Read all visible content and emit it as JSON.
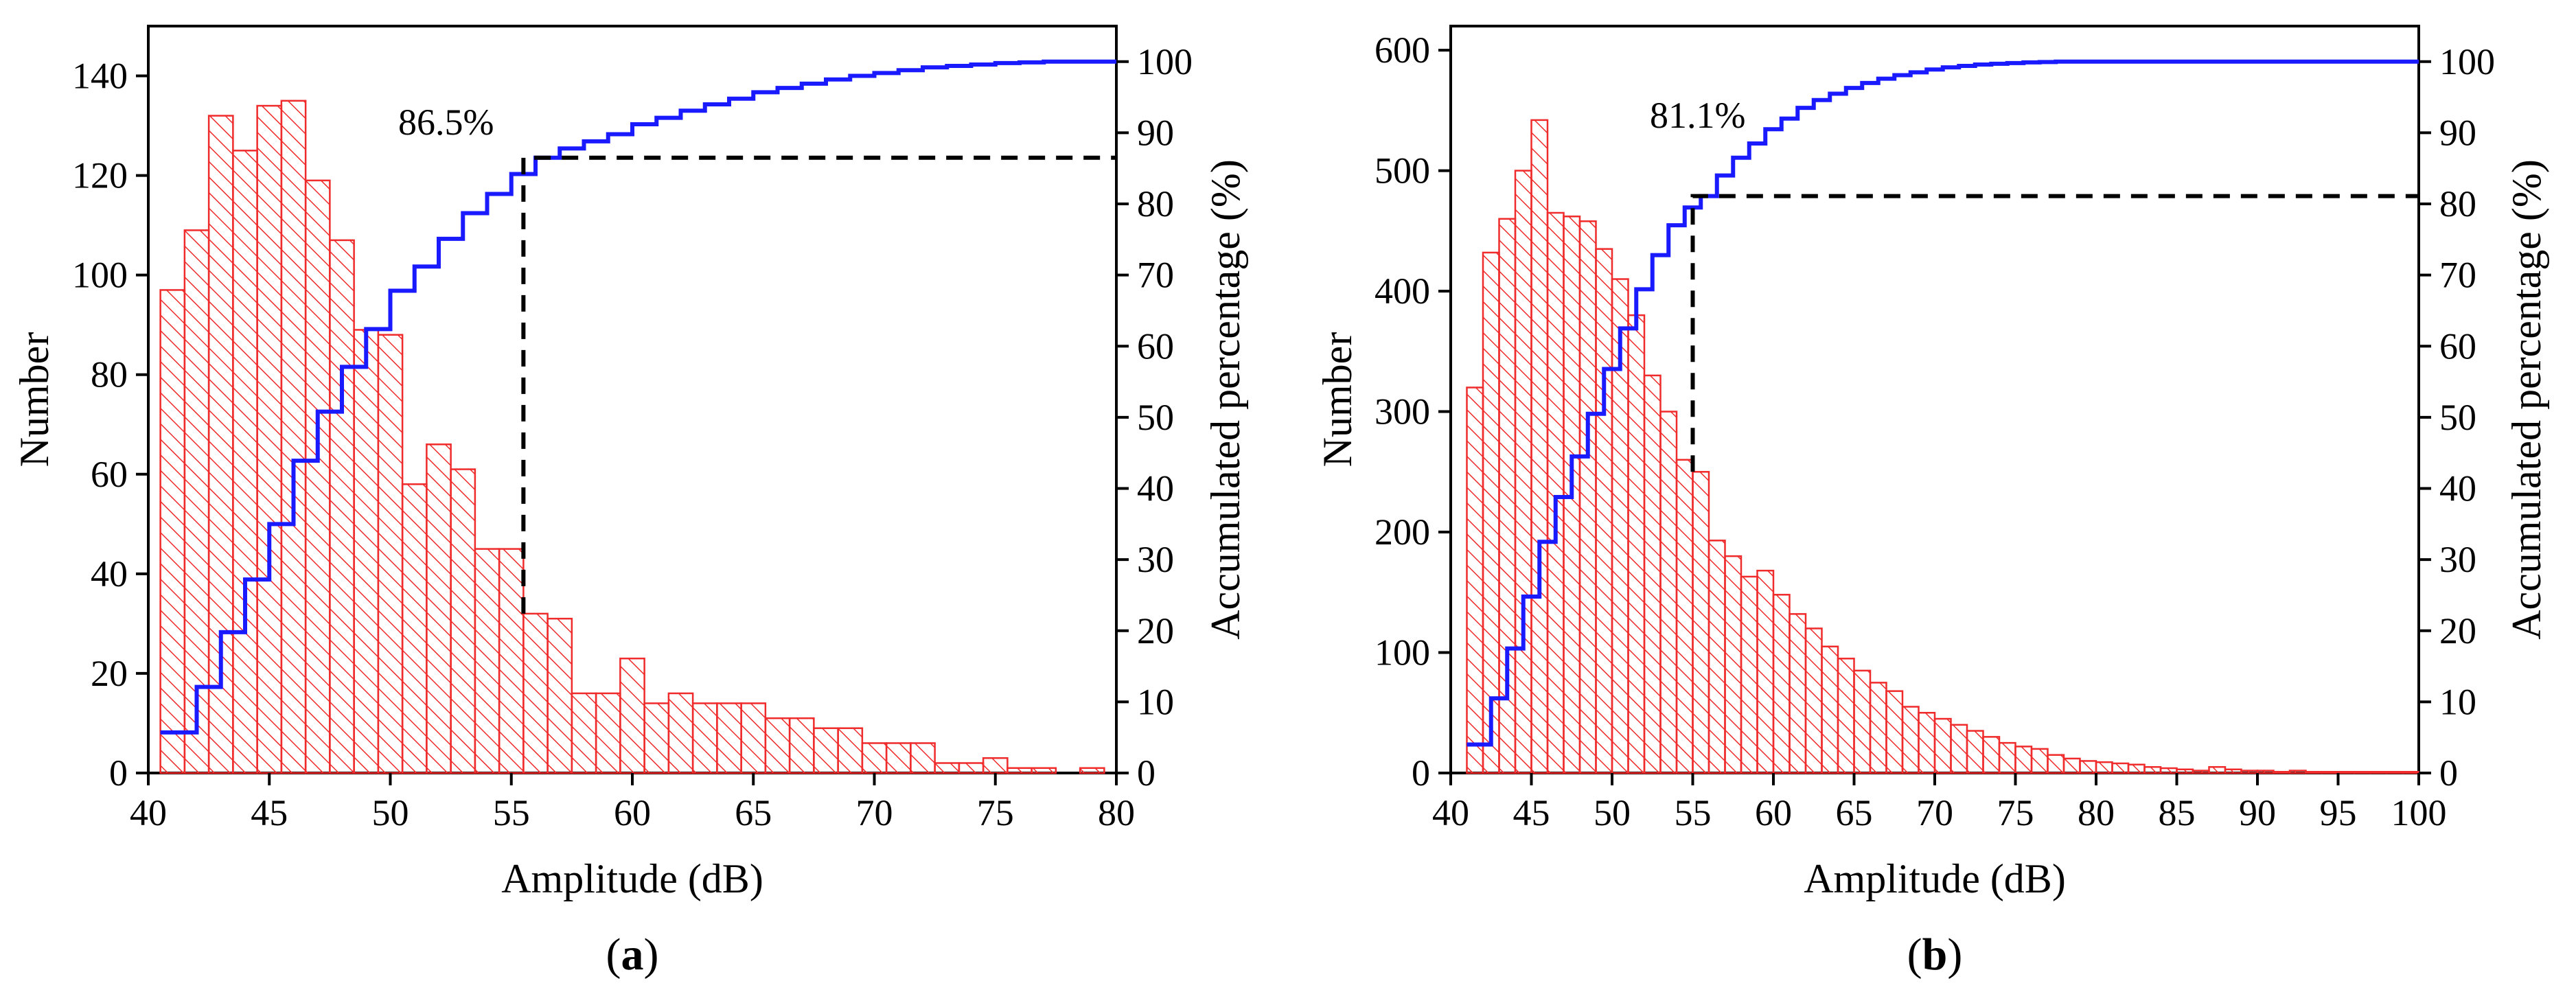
{
  "colors": {
    "bar_stroke": "#ef2b2b",
    "bar_hatch": "#ef2b2b",
    "cumulative_line": "#1a1aff",
    "threshold_line": "#000000",
    "axis": "#000000"
  },
  "chart_data": [
    {
      "type": "bar",
      "panel_label": "a",
      "title": "",
      "xlabel": "Amplitude (dB)",
      "ylabel": "Number",
      "y2label": "Accumulated percentage (%)",
      "xlim": [
        40,
        80
      ],
      "ylim": [
        0,
        150
      ],
      "y2lim": [
        0,
        105
      ],
      "xticks": [
        "40",
        "45",
        "50",
        "55",
        "60",
        "65",
        "70",
        "75",
        "80"
      ],
      "xtick_values": [
        40,
        45,
        50,
        55,
        60,
        65,
        70,
        75,
        80
      ],
      "yticks": [
        "0",
        "20",
        "40",
        "60",
        "80",
        "100",
        "120",
        "140"
      ],
      "ytick_values": [
        0,
        20,
        40,
        60,
        80,
        100,
        120,
        140
      ],
      "y2ticks": [
        "0",
        "10",
        "20",
        "30",
        "40",
        "50",
        "60",
        "70",
        "80",
        "90",
        "100"
      ],
      "y2tick_values": [
        0,
        10,
        20,
        30,
        40,
        50,
        60,
        70,
        80,
        90,
        100
      ],
      "bin_start": 40.5,
      "bin_width": 1,
      "values": [
        97,
        109,
        132,
        125,
        134,
        135,
        119,
        107,
        89,
        88,
        58,
        66,
        61,
        45,
        45,
        32,
        31,
        16,
        16,
        23,
        14,
        16,
        14,
        14,
        14,
        11,
        11,
        9,
        9,
        6,
        6,
        6,
        2,
        2,
        3,
        1,
        1,
        0,
        1
      ],
      "cumulative_percent": [
        5.7,
        12.1,
        19.8,
        27.2,
        35.0,
        43.9,
        50.8,
        57.1,
        62.4,
        67.8,
        71.2,
        75.1,
        78.7,
        81.4,
        84.2,
        86.5,
        87.8,
        88.8,
        89.8,
        91.2,
        92.1,
        93.1,
        94.0,
        94.8,
        95.7,
        96.3,
        96.9,
        97.5,
        98.0,
        98.4,
        98.8,
        99.2,
        99.4,
        99.6,
        99.8,
        99.9,
        100,
        100,
        100
      ],
      "threshold": {
        "x": 55.5,
        "percent": 86.5,
        "label": "86.5%"
      }
    },
    {
      "type": "bar",
      "panel_label": "b",
      "title": "",
      "xlabel": "Amplitude (dB)",
      "ylabel": "Number",
      "y2label": "Accumulated percentage (%)",
      "xlim": [
        40,
        100
      ],
      "ylim": [
        0,
        620
      ],
      "y2lim": [
        0,
        105
      ],
      "xticks": [
        "40",
        "45",
        "50",
        "55",
        "60",
        "65",
        "70",
        "75",
        "80",
        "85",
        "90",
        "95",
        "100"
      ],
      "xtick_values": [
        40,
        45,
        50,
        55,
        60,
        65,
        70,
        75,
        80,
        85,
        90,
        95,
        100
      ],
      "yticks": [
        "0",
        "100",
        "200",
        "300",
        "400",
        "500",
        "600"
      ],
      "ytick_values": [
        0,
        100,
        200,
        300,
        400,
        500,
        600
      ],
      "y2ticks": [
        "0",
        "10",
        "20",
        "30",
        "40",
        "50",
        "60",
        "70",
        "80",
        "90",
        "100"
      ],
      "y2tick_values": [
        0,
        10,
        20,
        30,
        40,
        50,
        60,
        70,
        80,
        90,
        100
      ],
      "bin_start": 41,
      "bin_width": 1,
      "values": [
        320,
        432,
        460,
        500,
        542,
        465,
        462,
        458,
        435,
        410,
        380,
        330,
        300,
        260,
        250,
        193,
        180,
        163,
        168,
        148,
        132,
        120,
        105,
        95,
        85,
        75,
        68,
        55,
        50,
        45,
        40,
        35,
        30,
        25,
        22,
        20,
        15,
        12,
        10,
        9,
        8,
        7,
        5,
        4,
        3,
        2,
        5,
        3,
        2,
        2,
        1,
        2,
        1,
        1,
        1,
        1,
        1,
        1,
        1
      ],
      "cumulative_percent": [
        4,
        10.5,
        17.5,
        24.8,
        32.5,
        38.8,
        44.5,
        50.5,
        56.8,
        62.5,
        68,
        72.8,
        77,
        79.5,
        81.1,
        84,
        86.5,
        88.5,
        90.5,
        92,
        93.5,
        94.6,
        95.5,
        96.3,
        97,
        97.6,
        98.1,
        98.5,
        98.9,
        99.2,
        99.4,
        99.6,
        99.7,
        99.8,
        99.9,
        99.95,
        100,
        100,
        100,
        100,
        100,
        100,
        100,
        100,
        100,
        100,
        100,
        100,
        100,
        100,
        100,
        100,
        100,
        100,
        100,
        100,
        100,
        100,
        100
      ],
      "threshold": {
        "x": 55,
        "percent": 81.1,
        "label": "81.1%"
      }
    }
  ]
}
